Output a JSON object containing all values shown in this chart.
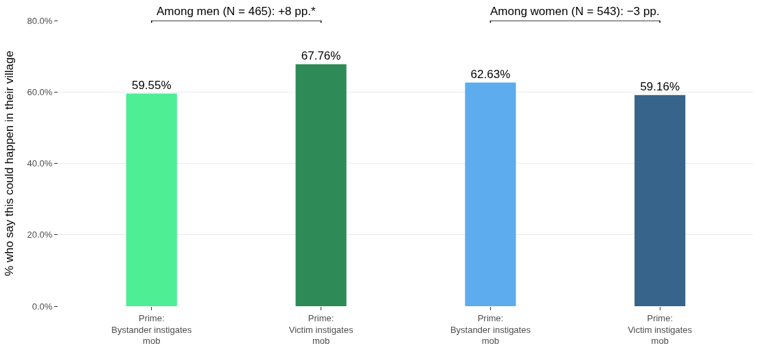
{
  "chart_data": {
    "type": "bar",
    "categories": [
      "Prime:\nBystander instigates\nmob",
      "Prime:\nVictim instigates\nmob",
      "Prime:\nBystander instigates\nmob",
      "Prime:\nVictim instigates\nmob"
    ],
    "values": [
      59.55,
      67.76,
      62.63,
      59.16
    ],
    "colors": [
      "#4eee94",
      "#2e8b57",
      "#5cacee",
      "#36648b"
    ],
    "value_labels": [
      "59.55%",
      "67.76%",
      "62.63%",
      "59.16%"
    ],
    "ylabel": "% who say this could happen in their village",
    "ylim": [
      0,
      80
    ],
    "yticks": [
      {
        "value": 0,
        "label": "0.0%"
      },
      {
        "value": 20,
        "label": "20.0%"
      },
      {
        "value": 40,
        "label": "40.0%"
      },
      {
        "value": 60,
        "label": "60.0%"
      },
      {
        "value": 80,
        "label": "80.0%"
      }
    ],
    "grid": "y",
    "annotations": [
      "Among men (N = 465): +8 pp.*",
      "Among women (N = 543): −3 pp."
    ]
  }
}
